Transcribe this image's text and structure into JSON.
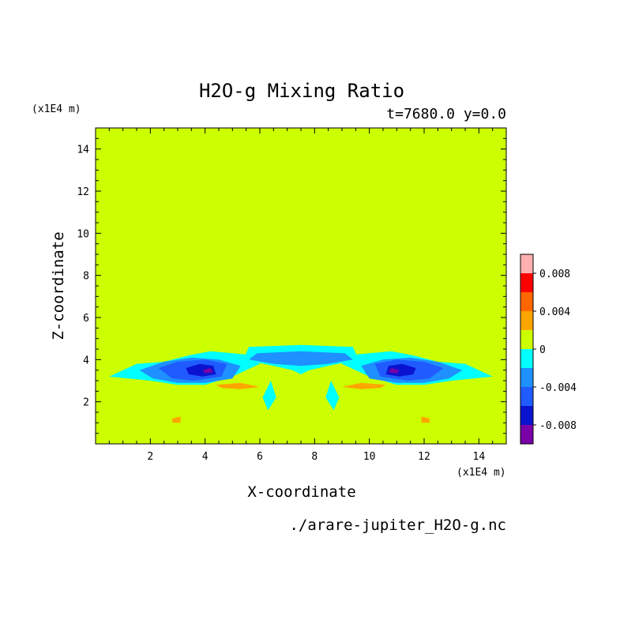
{
  "chart_data": {
    "type": "heatmap",
    "title": "H2O-g Mixing Ratio",
    "subtitle": "t=7680.0 y=0.0",
    "xlabel": "X-coordinate",
    "ylabel": "Z-coordinate",
    "x_unit": "(x1E4 m)",
    "y_unit": "(x1E4 m)",
    "source_file": "./arare-jupiter_H2O-g.nc",
    "xlim": [
      0,
      15
    ],
    "ylim": [
      0,
      15
    ],
    "x_ticks": [
      2,
      4,
      6,
      8,
      10,
      12,
      14
    ],
    "y_ticks": [
      2,
      4,
      6,
      8,
      10,
      12,
      14
    ],
    "x_tick_labels": [
      "2",
      "4",
      "6",
      "8",
      "10",
      "12",
      "14"
    ],
    "y_tick_labels": [
      "2",
      "4",
      "6",
      "8",
      "10",
      "12",
      "14"
    ],
    "colorbar": {
      "levels": [
        -0.01,
        -0.008,
        -0.006,
        -0.004,
        -0.002,
        0,
        0.002,
        0.004,
        0.006,
        0.008,
        0.01
      ],
      "colors": [
        "#7a00a8",
        "#0a14d0",
        "#1f5bff",
        "#1e90ff",
        "#00ffff",
        "#ccff00",
        "#ffa500",
        "#ff6600",
        "#ff0000",
        "#ffb0b0"
      ],
      "tick_values": [
        0.008,
        0.004,
        0,
        -0.004,
        -0.008
      ],
      "tick_labels": [
        "0.008",
        "0.004",
        "0",
        "-0.004",
        "-0.008"
      ]
    },
    "regions_note_levels": {
      "background_upper": 0,
      "background_lower": 0.001,
      "strongest_negative": -0.009
    },
    "regions": [
      {
        "level": 0.001,
        "pts": [
          [
            0,
            0
          ],
          [
            15,
            0
          ],
          [
            15,
            3.0
          ],
          [
            14,
            3.1
          ],
          [
            13,
            3.3
          ],
          [
            12,
            3.5
          ],
          [
            11,
            3.8
          ],
          [
            10,
            3.5
          ],
          [
            9,
            3.2
          ],
          [
            8,
            3.1
          ],
          [
            7.5,
            3.0
          ],
          [
            7,
            3.1
          ],
          [
            6,
            3.2
          ],
          [
            5,
            3.5
          ],
          [
            4,
            3.8
          ],
          [
            3,
            3.5
          ],
          [
            2,
            3.3
          ],
          [
            1,
            3.1
          ],
          [
            0,
            3.0
          ]
        ]
      },
      {
        "level": 0.001,
        "pts": [
          [
            0,
            3.0
          ],
          [
            0.3,
            4.0
          ],
          [
            0.3,
            6.5
          ],
          [
            0.5,
            8.0
          ],
          [
            0.4,
            9.2
          ],
          [
            0.6,
            10.5
          ],
          [
            1.2,
            10.8
          ],
          [
            1.6,
            10.2
          ],
          [
            1.8,
            9.0
          ],
          [
            2.1,
            8.0
          ],
          [
            1.9,
            6.8
          ],
          [
            2.5,
            6.2
          ],
          [
            3.0,
            5.8
          ],
          [
            3.5,
            5.4
          ],
          [
            3.9,
            4.6
          ],
          [
            3.3,
            4.1
          ],
          [
            2.4,
            4.3
          ],
          [
            1.5,
            4.6
          ],
          [
            0.8,
            4.2
          ],
          [
            0.4,
            3.4
          ]
        ]
      },
      {
        "level": 0.001,
        "pts": [
          [
            15,
            3.0
          ],
          [
            14.7,
            4.0
          ],
          [
            14.7,
            6.5
          ],
          [
            14.5,
            8.0
          ],
          [
            14.6,
            9.2
          ],
          [
            14.4,
            10.5
          ],
          [
            13.8,
            10.8
          ],
          [
            13.4,
            10.2
          ],
          [
            13.2,
            9.0
          ],
          [
            12.9,
            8.0
          ],
          [
            13.1,
            6.8
          ],
          [
            12.5,
            6.2
          ],
          [
            12.0,
            5.8
          ],
          [
            11.5,
            5.4
          ],
          [
            11.1,
            4.6
          ],
          [
            11.7,
            4.1
          ],
          [
            12.6,
            4.3
          ],
          [
            13.5,
            4.6
          ],
          [
            14.2,
            4.2
          ],
          [
            14.6,
            3.4
          ]
        ]
      },
      {
        "level": 0.001,
        "pts": [
          [
            2.6,
            11.6
          ],
          [
            5.8,
            11.6
          ],
          [
            5.4,
            10.8
          ],
          [
            4.4,
            11.1
          ],
          [
            3.3,
            10.9
          ],
          [
            2.7,
            11.2
          ]
        ]
      },
      {
        "level": 0.001,
        "pts": [
          [
            12.4,
            11.6
          ],
          [
            9.2,
            11.6
          ],
          [
            9.6,
            10.8
          ],
          [
            10.6,
            11.1
          ],
          [
            11.7,
            10.9
          ],
          [
            12.3,
            11.2
          ]
        ]
      },
      {
        "level": 0.001,
        "pts": [
          [
            5.5,
            11.8
          ],
          [
            9.5,
            11.8
          ],
          [
            9.7,
            11.1
          ],
          [
            10.1,
            10.5
          ],
          [
            9.4,
            10.0
          ],
          [
            8.6,
            9.6
          ],
          [
            7.5,
            9.3
          ],
          [
            6.4,
            9.6
          ],
          [
            5.6,
            10.0
          ],
          [
            4.9,
            10.5
          ],
          [
            5.3,
            11.1
          ]
        ]
      },
      {
        "level": 0.001,
        "pts": [
          [
            5.0,
            7.0
          ],
          [
            5.5,
            6.4
          ],
          [
            6.0,
            6.5
          ],
          [
            6.2,
            7.3
          ],
          [
            6.5,
            7.8
          ],
          [
            6.2,
            8.4
          ],
          [
            5.7,
            8.1
          ],
          [
            5.4,
            7.6
          ]
        ]
      },
      {
        "level": 0.001,
        "pts": [
          [
            10.0,
            7.0
          ],
          [
            9.5,
            6.4
          ],
          [
            9.0,
            6.5
          ],
          [
            8.8,
            7.3
          ],
          [
            8.5,
            7.8
          ],
          [
            8.8,
            8.4
          ],
          [
            9.3,
            8.1
          ],
          [
            9.6,
            7.6
          ]
        ]
      },
      {
        "level": 0.001,
        "pts": [
          [
            4.8,
            5.4
          ],
          [
            5.3,
            5.3
          ],
          [
            5.2,
            5.8
          ],
          [
            4.9,
            6.0
          ]
        ]
      },
      {
        "level": 0.001,
        "pts": [
          [
            10.2,
            5.4
          ],
          [
            9.7,
            5.3
          ],
          [
            9.8,
            5.8
          ],
          [
            10.1,
            6.0
          ]
        ]
      },
      {
        "level": -0.001,
        "pts": [
          [
            0.5,
            3.2
          ],
          [
            1.5,
            3.8
          ],
          [
            2.5,
            3.9
          ],
          [
            3.4,
            4.2
          ],
          [
            4.2,
            4.4
          ],
          [
            5.0,
            4.3
          ],
          [
            5.8,
            4.2
          ],
          [
            6.0,
            3.8
          ],
          [
            5.0,
            3.2
          ],
          [
            4.0,
            2.8
          ],
          [
            3.0,
            2.8
          ],
          [
            2.0,
            3.0
          ]
        ]
      },
      {
        "level": -0.001,
        "pts": [
          [
            14.5,
            3.2
          ],
          [
            13.5,
            3.8
          ],
          [
            12.5,
            3.9
          ],
          [
            11.6,
            4.2
          ],
          [
            10.8,
            4.4
          ],
          [
            10.0,
            4.3
          ],
          [
            9.2,
            4.2
          ],
          [
            9.0,
            3.8
          ],
          [
            10.0,
            3.2
          ],
          [
            11.0,
            2.8
          ],
          [
            12.0,
            2.8
          ],
          [
            13.0,
            3.0
          ]
        ]
      },
      {
        "level": -0.001,
        "pts": [
          [
            5.4,
            4.0
          ],
          [
            5.6,
            4.6
          ],
          [
            7.5,
            4.7
          ],
          [
            9.4,
            4.6
          ],
          [
            9.6,
            4.0
          ],
          [
            8.5,
            3.7
          ],
          [
            7.8,
            3.5
          ],
          [
            7.5,
            3.3
          ],
          [
            7.2,
            3.5
          ],
          [
            6.5,
            3.7
          ]
        ]
      },
      {
        "level": -0.001,
        "pts": [
          [
            6.4,
            3.0
          ],
          [
            6.6,
            2.2
          ],
          [
            6.3,
            1.6
          ],
          [
            6.1,
            2.2
          ]
        ]
      },
      {
        "level": -0.001,
        "pts": [
          [
            8.6,
            3.0
          ],
          [
            8.4,
            2.2
          ],
          [
            8.7,
            1.6
          ],
          [
            8.9,
            2.2
          ]
        ]
      },
      {
        "level": -0.003,
        "pts": [
          [
            1.6,
            3.5
          ],
          [
            2.5,
            3.9
          ],
          [
            3.5,
            4.1
          ],
          [
            4.5,
            4.0
          ],
          [
            5.3,
            3.7
          ],
          [
            5.0,
            3.1
          ],
          [
            4.0,
            2.9
          ],
          [
            3.0,
            2.9
          ],
          [
            2.1,
            3.1
          ]
        ]
      },
      {
        "level": -0.003,
        "pts": [
          [
            13.4,
            3.5
          ],
          [
            12.5,
            3.9
          ],
          [
            11.5,
            4.1
          ],
          [
            10.5,
            4.0
          ],
          [
            9.7,
            3.7
          ],
          [
            10.0,
            3.1
          ],
          [
            11.0,
            2.9
          ],
          [
            12.0,
            2.9
          ],
          [
            12.9,
            3.1
          ]
        ]
      },
      {
        "level": -0.003,
        "pts": [
          [
            5.6,
            4.0
          ],
          [
            5.9,
            4.3
          ],
          [
            7.5,
            4.4
          ],
          [
            9.1,
            4.3
          ],
          [
            9.4,
            4.0
          ],
          [
            8.5,
            3.8
          ],
          [
            7.5,
            3.7
          ],
          [
            6.5,
            3.8
          ]
        ]
      },
      {
        "level": -0.005,
        "pts": [
          [
            2.3,
            3.6
          ],
          [
            3.0,
            3.9
          ],
          [
            4.0,
            4.0
          ],
          [
            4.8,
            3.8
          ],
          [
            4.6,
            3.2
          ],
          [
            3.6,
            3.0
          ],
          [
            2.8,
            3.1
          ]
        ]
      },
      {
        "level": -0.005,
        "pts": [
          [
            12.7,
            3.6
          ],
          [
            12.0,
            3.9
          ],
          [
            11.0,
            4.0
          ],
          [
            10.2,
            3.8
          ],
          [
            10.4,
            3.2
          ],
          [
            11.4,
            3.0
          ],
          [
            12.2,
            3.1
          ]
        ]
      },
      {
        "level": -0.007,
        "pts": [
          [
            3.3,
            3.6
          ],
          [
            3.8,
            3.8
          ],
          [
            4.3,
            3.7
          ],
          [
            4.4,
            3.3
          ],
          [
            3.9,
            3.2
          ],
          [
            3.4,
            3.3
          ]
        ]
      },
      {
        "level": -0.007,
        "pts": [
          [
            11.7,
            3.6
          ],
          [
            11.2,
            3.8
          ],
          [
            10.7,
            3.7
          ],
          [
            10.6,
            3.3
          ],
          [
            11.1,
            3.2
          ],
          [
            11.6,
            3.3
          ]
        ]
      },
      {
        "level": -0.009,
        "pts": [
          [
            3.9,
            3.5
          ],
          [
            4.2,
            3.6
          ],
          [
            4.3,
            3.4
          ],
          [
            4.0,
            3.35
          ]
        ]
      },
      {
        "level": -0.009,
        "pts": [
          [
            11.1,
            3.5
          ],
          [
            10.8,
            3.6
          ],
          [
            10.7,
            3.4
          ],
          [
            11.0,
            3.35
          ]
        ]
      },
      {
        "level": 0.003,
        "pts": [
          [
            4.4,
            2.8
          ],
          [
            5.3,
            2.9
          ],
          [
            6.0,
            2.7
          ],
          [
            5.3,
            2.6
          ],
          [
            4.6,
            2.65
          ]
        ]
      },
      {
        "level": 0.003,
        "pts": [
          [
            10.6,
            2.8
          ],
          [
            9.7,
            2.9
          ],
          [
            9.0,
            2.7
          ],
          [
            9.7,
            2.6
          ],
          [
            10.4,
            2.65
          ]
        ]
      },
      {
        "level": 0.003,
        "pts": [
          [
            2.8,
            1.2
          ],
          [
            3.1,
            1.3
          ],
          [
            3.1,
            1.0
          ],
          [
            2.8,
            1.0
          ]
        ]
      },
      {
        "level": 0.003,
        "pts": [
          [
            12.2,
            1.2
          ],
          [
            11.9,
            1.3
          ],
          [
            11.9,
            1.0
          ],
          [
            12.2,
            1.0
          ]
        ]
      }
    ]
  }
}
